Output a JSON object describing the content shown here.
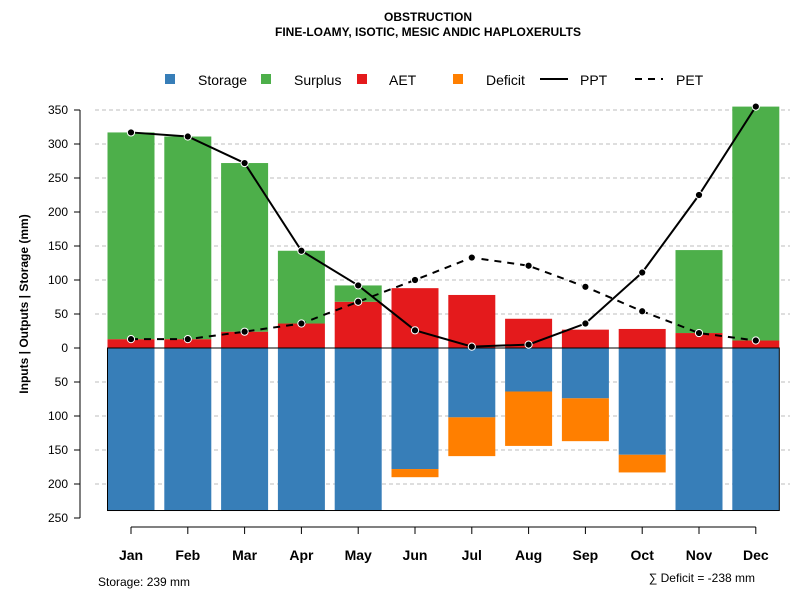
{
  "chart_data": {
    "type": "bar",
    "title": "OBSTRUCTION",
    "subtitle": "FINE-LOAMY, ISOTIC, MESIC ANDIC HAPLOXERULTS",
    "ylabel": "Inputs | Outputs | Storage    (mm)",
    "ylim": [
      -250,
      380
    ],
    "yticks": [
      350,
      300,
      250,
      200,
      150,
      100,
      50,
      0,
      -50,
      -100,
      -150,
      -200,
      -250
    ],
    "ytick_labels": [
      "350",
      "300",
      "250",
      "200",
      "150",
      "100",
      "50",
      "0",
      "50",
      "100",
      "150",
      "200",
      "250"
    ],
    "categories": [
      "Jan",
      "Feb",
      "Mar",
      "Apr",
      "May",
      "Jun",
      "Jul",
      "Aug",
      "Sep",
      "Oct",
      "Nov",
      "Dec"
    ],
    "legend": [
      {
        "label": "Storage",
        "kind": "square",
        "color": "#377EB8"
      },
      {
        "label": "Surplus",
        "kind": "square",
        "color": "#4DAF4A"
      },
      {
        "label": "AET",
        "kind": "square",
        "color": "#E41A1C"
      },
      {
        "label": "Deficit",
        "kind": "square",
        "color": "#FF7F00"
      },
      {
        "label": "PPT",
        "kind": "solid-line",
        "color": "#000000"
      },
      {
        "label": "PET",
        "kind": "dashed-line",
        "color": "#000000"
      }
    ],
    "series": [
      {
        "name": "AET",
        "color": "#E41A1C",
        "values": [
          13,
          13,
          24,
          36,
          68,
          88,
          78,
          43,
          27,
          28,
          22,
          11
        ]
      },
      {
        "name": "Surplus",
        "color": "#4DAF4A",
        "values": [
          304,
          298,
          248,
          107,
          24,
          0,
          0,
          0,
          0,
          0,
          122,
          344
        ]
      },
      {
        "name": "Storage",
        "color": "#377EB8",
        "values": [
          239,
          239,
          239,
          239,
          239,
          178,
          102,
          64,
          74,
          157,
          239,
          239
        ]
      },
      {
        "name": "Deficit",
        "color": "#FF7F00",
        "values": [
          0,
          0,
          0,
          0,
          0,
          12,
          57,
          80,
          63,
          26,
          0,
          0
        ]
      },
      {
        "name": "PPT",
        "color": "#000000",
        "values": [
          317,
          311,
          272,
          143,
          92,
          26,
          2,
          5,
          36,
          111,
          225,
          355
        ]
      },
      {
        "name": "PET",
        "color": "#000000",
        "values": [
          13,
          13,
          24,
          36,
          68,
          100,
          133,
          121,
          90,
          54,
          22,
          11
        ]
      }
    ],
    "storage_capacity": 239
  },
  "footer": {
    "storage_label": "Storage: 239 mm",
    "deficit_label": "∑ Deficit = -238 mm"
  }
}
